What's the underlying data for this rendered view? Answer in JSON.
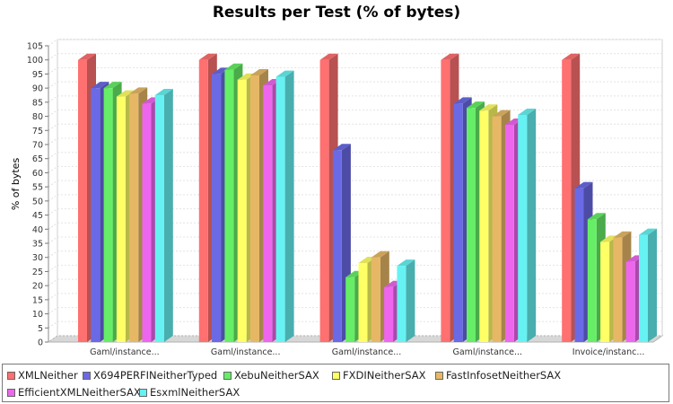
{
  "chart_data": {
    "type": "bar",
    "title": "Results per Test (% of bytes)",
    "xlabel": "",
    "ylabel": "% of bytes",
    "ylim": [
      0,
      105
    ],
    "y_ticks": [
      0,
      5,
      10,
      15,
      20,
      25,
      30,
      35,
      40,
      45,
      50,
      55,
      60,
      65,
      70,
      75,
      80,
      85,
      90,
      95,
      100,
      105
    ],
    "grid": true,
    "legend_position": "bottom",
    "categories": [
      "Gaml/instance...",
      "Gaml/instance...",
      "Gaml/instance...",
      "Gaml/instance...",
      "Invoice/instanc..."
    ],
    "series": [
      {
        "name": "XMLNeither",
        "color": "#ff7070",
        "values": [
          100,
          100,
          100,
          100,
          100
        ]
      },
      {
        "name": "X694PERFINeitherTyped",
        "color": "#6a6ae6",
        "values": [
          90,
          95,
          68,
          84.5,
          54.5
        ]
      },
      {
        "name": "XebuNeitherSAX",
        "color": "#66ee66",
        "values": [
          90,
          96.5,
          23,
          83,
          43.5
        ]
      },
      {
        "name": "FXDINeitherSAX",
        "color": "#ffff66",
        "values": [
          87,
          93,
          28,
          82,
          35.5
        ]
      },
      {
        "name": "FastInfosetNeitherSAX",
        "color": "#e6b866",
        "values": [
          88,
          94.5,
          30,
          80,
          37
        ]
      },
      {
        "name": "EfficientXMLNeitherSAX",
        "color": "#ee66ee",
        "values": [
          84.5,
          91,
          19.5,
          77,
          28.5
        ]
      },
      {
        "name": "EsxmlNeitherSAX",
        "color": "#66f2f2",
        "values": [
          87.5,
          94,
          27,
          80.5,
          38
        ]
      }
    ]
  }
}
